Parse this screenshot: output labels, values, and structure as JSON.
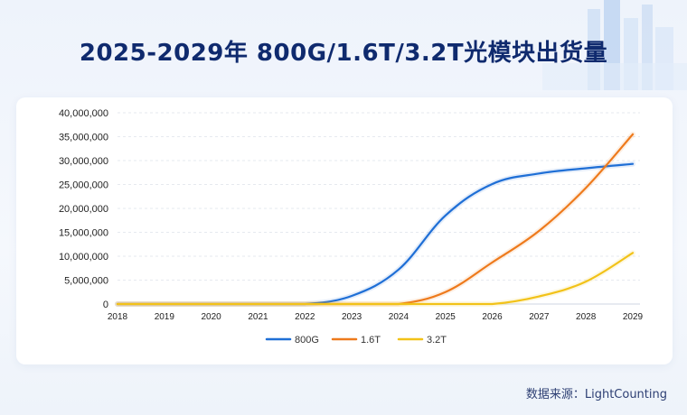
{
  "header": {
    "title": "2025-2029年 800G/1.6T/3.2T光模块出货量"
  },
  "footer": {
    "source": "数据来源：LightCounting"
  },
  "colors": {
    "800G": "#1f6fd6",
    "1.6T": "#ee7a1c",
    "3.2T": "#f2c218",
    "title": "#0f2a6e"
  },
  "chart_data": {
    "type": "line",
    "title": "2025-2029年 800G/1.6T/3.2T光模块出货量",
    "xlabel": "",
    "ylabel": "",
    "x": [
      "2018",
      "2019",
      "2020",
      "2021",
      "2022",
      "2023",
      "2024",
      "2025",
      "2026",
      "2027",
      "2028",
      "2029"
    ],
    "ylim": [
      0,
      40000000
    ],
    "yticks": [
      0,
      5000000,
      10000000,
      15000000,
      20000000,
      25000000,
      30000000,
      35000000,
      40000000
    ],
    "ytick_labels": [
      "0",
      "5,000,000",
      "10,000,000",
      "15,000,000",
      "20,000,000",
      "25,000,000",
      "30,000,000",
      "35,000,000",
      "40,000,000"
    ],
    "grid": true,
    "legend": "bottom",
    "series": [
      {
        "name": "800G",
        "values": [
          0,
          0,
          0,
          0,
          0,
          1700000,
          7200000,
          18500000,
          25100000,
          27300000,
          28400000,
          29300000
        ]
      },
      {
        "name": "1.6T",
        "values": [
          0,
          0,
          0,
          0,
          0,
          0,
          0,
          2500000,
          8700000,
          15300000,
          24300000,
          35500000
        ]
      },
      {
        "name": "3.2T",
        "values": [
          0,
          0,
          0,
          0,
          0,
          0,
          0,
          0,
          0,
          1600000,
          4700000,
          10700000
        ]
      }
    ]
  }
}
